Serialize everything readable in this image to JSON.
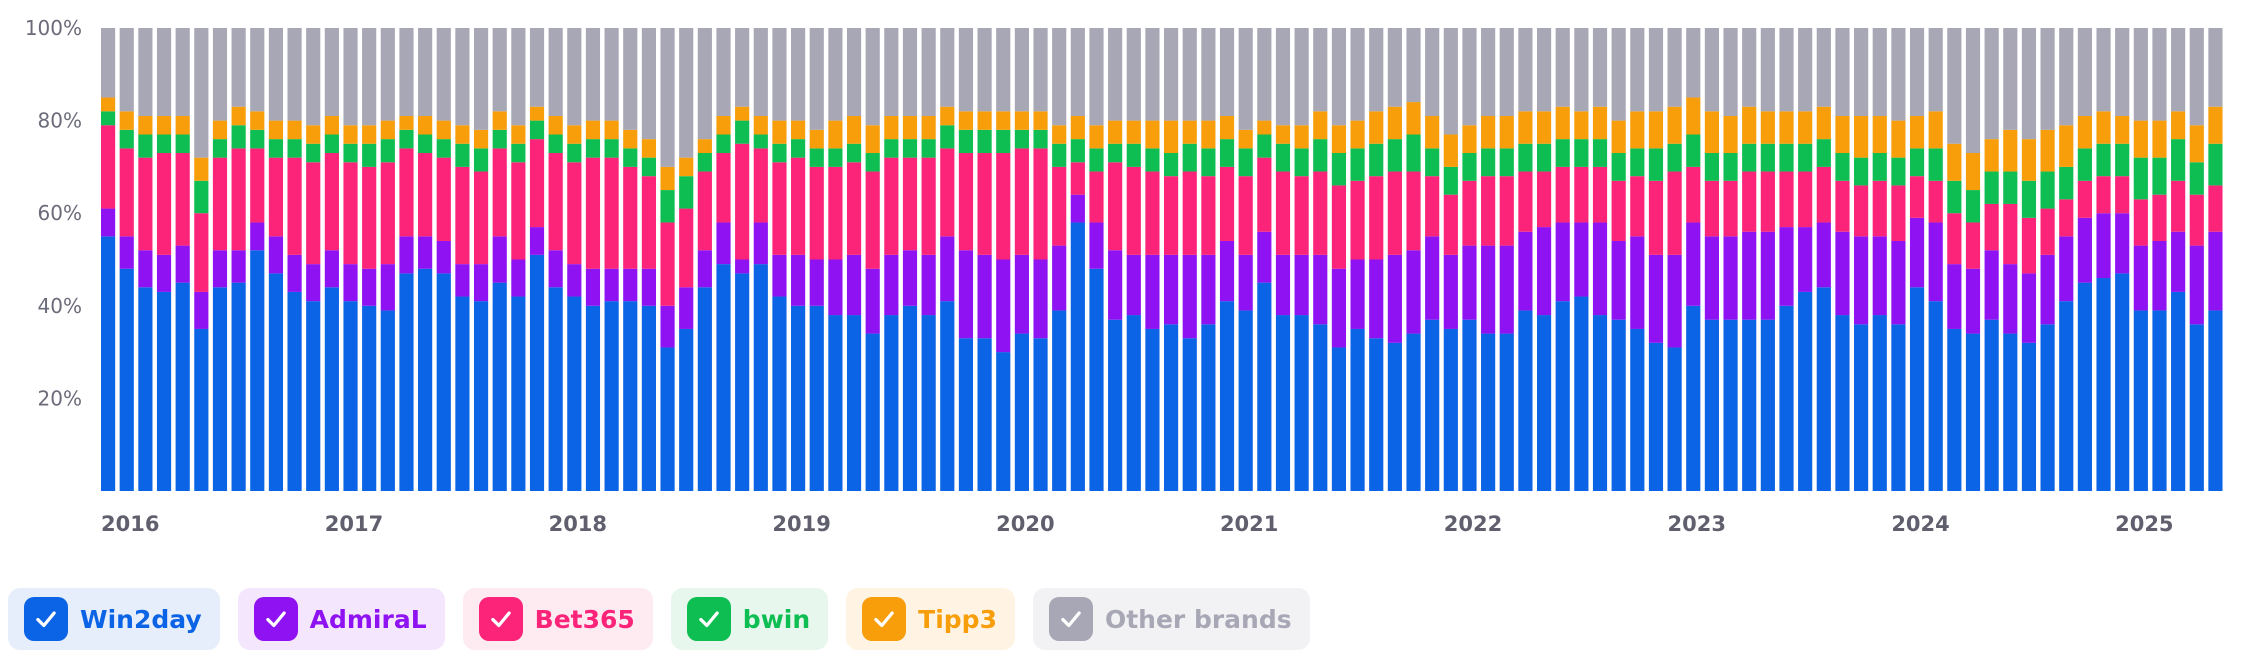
{
  "legend": [
    {
      "label": "Win2day",
      "color": "#0b63e5",
      "bg": "#e6eefc",
      "icon": "check-icon"
    },
    {
      "label": "AdmiraL",
      "color": "#8f12f2",
      "bg": "#f3e6fd",
      "icon": "check-icon"
    },
    {
      "label": "Bet365",
      "color": "#fb2479",
      "bg": "#feebf2",
      "icon": "check-icon"
    },
    {
      "label": "bwin",
      "color": "#0ebe52",
      "bg": "#e7f7ed",
      "icon": "check-icon"
    },
    {
      "label": "Tipp3",
      "color": "#f79e0a",
      "bg": "#fff4e4",
      "icon": "check-icon"
    },
    {
      "label": "Other brands",
      "color": "#a8a7b6",
      "bg": "#f2f2f4",
      "icon": "check-icon"
    }
  ],
  "chart_data": {
    "type": "bar",
    "stacked": true,
    "percent": true,
    "ylim": [
      0,
      100
    ],
    "yticks": [
      "20%",
      "40%",
      "60%",
      "80%",
      "100%"
    ],
    "x_ticks": [
      {
        "label": "2016",
        "index": 0
      },
      {
        "label": "2017",
        "index": 12
      },
      {
        "label": "2018",
        "index": 24
      },
      {
        "label": "2019",
        "index": 36
      },
      {
        "label": "2020",
        "index": 48
      },
      {
        "label": "2021",
        "index": 60
      },
      {
        "label": "2022",
        "index": 72
      },
      {
        "label": "2023",
        "index": 84
      },
      {
        "label": "2024",
        "index": 96
      },
      {
        "label": "2025",
        "index": 108
      }
    ],
    "grid": false,
    "legend_position": "bottom",
    "series": [
      {
        "name": "Win2day",
        "color": "#0b63e5",
        "values": [
          55,
          48,
          44,
          43,
          45,
          35,
          44,
          45,
          52,
          47,
          43,
          41,
          44,
          41,
          40,
          39,
          47,
          48,
          47,
          42,
          41,
          45,
          42,
          51,
          44,
          42,
          40,
          41,
          41,
          40,
          31,
          35,
          44,
          49,
          47,
          49,
          42,
          40,
          40,
          38,
          38,
          34,
          38,
          40,
          38,
          41,
          33,
          33,
          30,
          34,
          33,
          39,
          58,
          48,
          37,
          38,
          35,
          36,
          33,
          36,
          41,
          39,
          45,
          38,
          38,
          36,
          31,
          35,
          33,
          32,
          34,
          37,
          35,
          37,
          34,
          34,
          39,
          38,
          41,
          42,
          38,
          37,
          35,
          32,
          31,
          40,
          37,
          37,
          37,
          37,
          40,
          43,
          44,
          38,
          36,
          38,
          36,
          44,
          41,
          35,
          34,
          37,
          34,
          32,
          36,
          41,
          45,
          46,
          47,
          39,
          39,
          43,
          36,
          39
        ]
      },
      {
        "name": "AdmiraL",
        "color": "#8f12f2",
        "values": [
          6,
          7,
          8,
          8,
          8,
          8,
          8,
          7,
          6,
          8,
          8,
          8,
          8,
          8,
          8,
          10,
          8,
          7,
          7,
          7,
          8,
          10,
          8,
          6,
          8,
          7,
          8,
          7,
          7,
          8,
          9,
          9,
          8,
          9,
          3,
          9,
          9,
          11,
          10,
          12,
          13,
          14,
          13,
          12,
          13,
          14,
          19,
          18,
          20,
          17,
          17,
          14,
          6,
          10,
          15,
          13,
          16,
          15,
          18,
          15,
          13,
          12,
          11,
          13,
          13,
          15,
          17,
          15,
          17,
          19,
          18,
          18,
          16,
          16,
          19,
          19,
          17,
          19,
          17,
          16,
          20,
          17,
          20,
          19,
          20,
          18,
          18,
          18,
          19,
          19,
          17,
          14,
          14,
          18,
          19,
          17,
          18,
          15,
          17,
          14,
          14,
          15,
          15,
          15,
          15,
          14,
          14,
          14,
          13,
          14,
          15,
          13,
          17,
          17
        ]
      },
      {
        "name": "Bet365",
        "color": "#fb2479",
        "values": [
          18,
          19,
          20,
          22,
          20,
          17,
          20,
          22,
          16,
          17,
          21,
          22,
          21,
          22,
          22,
          22,
          19,
          18,
          18,
          21,
          20,
          19,
          21,
          19,
          21,
          22,
          24,
          24,
          22,
          20,
          18,
          17,
          17,
          15,
          25,
          16,
          20,
          21,
          20,
          20,
          20,
          21,
          21,
          20,
          21,
          19,
          21,
          22,
          23,
          23,
          24,
          17,
          7,
          11,
          19,
          19,
          18,
          17,
          18,
          17,
          16,
          17,
          16,
          18,
          17,
          18,
          18,
          17,
          18,
          18,
          17,
          13,
          13,
          14,
          15,
          15,
          13,
          12,
          12,
          12,
          12,
          13,
          13,
          16,
          18,
          12,
          12,
          12,
          13,
          13,
          12,
          12,
          12,
          11,
          11,
          12,
          12,
          9,
          9,
          11,
          10,
          10,
          13,
          12,
          10,
          8,
          8,
          8,
          8,
          10,
          10,
          11,
          11,
          10
        ]
      },
      {
        "name": "bwin",
        "color": "#0ebe52",
        "values": [
          3,
          4,
          5,
          4,
          4,
          7,
          4,
          5,
          4,
          4,
          4,
          4,
          4,
          4,
          5,
          5,
          4,
          4,
          4,
          5,
          5,
          4,
          4,
          4,
          4,
          4,
          4,
          4,
          4,
          4,
          7,
          7,
          4,
          4,
          5,
          3,
          4,
          4,
          4,
          4,
          4,
          4,
          4,
          4,
          4,
          5,
          5,
          5,
          5,
          4,
          4,
          5,
          5,
          5,
          4,
          5,
          5,
          5,
          6,
          6,
          6,
          6,
          5,
          6,
          6,
          7,
          7,
          7,
          7,
          7,
          8,
          6,
          6,
          6,
          6,
          6,
          6,
          6,
          6,
          6,
          6,
          6,
          6,
          7,
          6,
          7,
          6,
          6,
          6,
          6,
          6,
          6,
          6,
          6,
          6,
          6,
          6,
          6,
          7,
          7,
          7,
          7,
          7,
          8,
          8,
          7,
          7,
          7,
          7,
          9,
          8,
          9,
          7,
          9
        ]
      },
      {
        "name": "Tipp3",
        "color": "#f79e0a",
        "values": [
          3,
          4,
          4,
          4,
          4,
          5,
          4,
          4,
          4,
          4,
          4,
          4,
          4,
          4,
          4,
          4,
          3,
          4,
          4,
          4,
          4,
          4,
          4,
          3,
          4,
          4,
          4,
          4,
          4,
          4,
          5,
          4,
          3,
          4,
          3,
          4,
          5,
          4,
          4,
          6,
          6,
          6,
          5,
          5,
          5,
          4,
          4,
          4,
          4,
          4,
          4,
          4,
          5,
          5,
          5,
          5,
          6,
          7,
          5,
          6,
          5,
          4,
          3,
          4,
          5,
          6,
          6,
          6,
          7,
          7,
          7,
          7,
          7,
          6,
          7,
          7,
          7,
          7,
          7,
          6,
          7,
          7,
          8,
          8,
          8,
          8,
          9,
          8,
          8,
          7,
          7,
          7,
          7,
          8,
          9,
          8,
          8,
          7,
          8,
          8,
          8,
          7,
          9,
          9,
          9,
          9,
          7,
          7,
          6,
          8,
          8,
          6,
          8,
          8
        ]
      },
      {
        "name": "Other brands",
        "color": "#a8a7b6",
        "values": [
          15,
          18,
          19,
          19,
          19,
          28,
          20,
          17,
          18,
          20,
          20,
          21,
          19,
          21,
          21,
          20,
          19,
          19,
          20,
          21,
          22,
          18,
          21,
          17,
          19,
          21,
          20,
          20,
          22,
          24,
          30,
          28,
          24,
          19,
          17,
          19,
          20,
          20,
          22,
          20,
          19,
          21,
          19,
          19,
          19,
          17,
          18,
          18,
          18,
          18,
          18,
          21,
          19,
          21,
          20,
          20,
          20,
          20,
          20,
          20,
          19,
          22,
          20,
          21,
          21,
          18,
          21,
          20,
          18,
          17,
          16,
          19,
          23,
          21,
          19,
          19,
          18,
          18,
          17,
          18,
          17,
          20,
          18,
          18,
          17,
          15,
          18,
          19,
          17,
          18,
          18,
          18,
          17,
          19,
          19,
          19,
          20,
          19,
          18,
          25,
          27,
          24,
          22,
          24,
          22,
          21,
          19,
          18,
          19,
          20,
          20,
          18,
          21,
          17
        ]
      }
    ]
  }
}
